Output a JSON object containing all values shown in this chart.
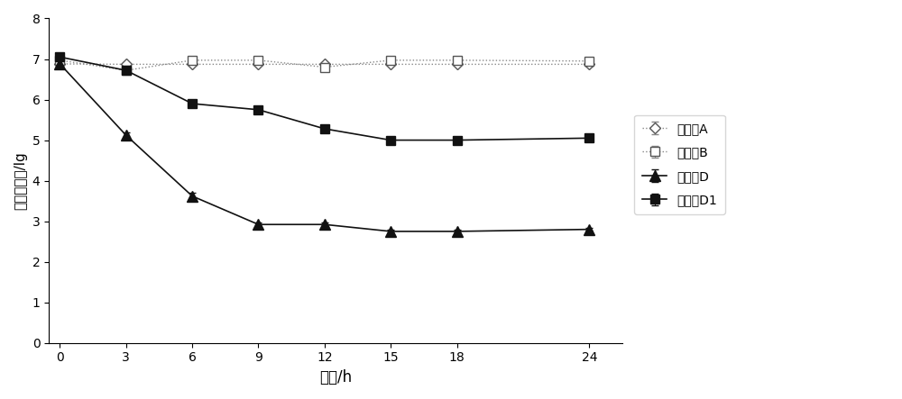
{
  "x": [
    0,
    3,
    6,
    9,
    12,
    15,
    18,
    24
  ],
  "series": {
    "实验组A": {
      "y": [
        6.88,
        6.87,
        6.87,
        6.87,
        6.87,
        6.87,
        6.87,
        6.87
      ],
      "yerr": [
        0.04,
        0.0,
        0.0,
        0.0,
        0.06,
        0.0,
        0.0,
        0.05
      ],
      "marker": "D",
      "markersize": 6,
      "markerfacecolor": "white",
      "markeredgecolor": "#555555",
      "color": "#888888",
      "linestyle": ":",
      "linewidth": 1.0
    },
    "实验组B": {
      "y": [
        6.97,
        6.72,
        6.97,
        6.97,
        6.8,
        6.97,
        6.97,
        6.95
      ],
      "yerr": [
        0.04,
        0.0,
        0.06,
        0.06,
        0.1,
        0.05,
        0.05,
        0.04
      ],
      "marker": "s",
      "markersize": 7,
      "markerfacecolor": "white",
      "markeredgecolor": "#555555",
      "color": "#888888",
      "linestyle": ":",
      "linewidth": 1.0
    },
    "实验组D": {
      "y": [
        6.88,
        5.12,
        3.62,
        2.92,
        2.92,
        2.75,
        2.75,
        2.8
      ],
      "yerr": [
        0.04,
        0.08,
        0.08,
        0.05,
        0.05,
        0.04,
        0.04,
        0.04
      ],
      "marker": "^",
      "markersize": 8,
      "markerfacecolor": "#111111",
      "markeredgecolor": "#111111",
      "color": "#111111",
      "linestyle": "-",
      "linewidth": 1.2
    },
    "实验组D1": {
      "y": [
        7.05,
        6.72,
        5.9,
        5.75,
        5.28,
        5.0,
        5.0,
        5.05
      ],
      "yerr": [
        0.04,
        0.05,
        0.05,
        0.05,
        0.05,
        0.04,
        0.04,
        0.04
      ],
      "marker": "s",
      "markersize": 7,
      "markerfacecolor": "#111111",
      "markeredgecolor": "#111111",
      "color": "#111111",
      "linestyle": "-",
      "linewidth": 1.2
    }
  },
  "xlabel": "时间/h",
  "ylabel": "细菌对数值/lg",
  "xlim": [
    -0.5,
    25.5
  ],
  "ylim": [
    0,
    8
  ],
  "xticks": [
    0,
    3,
    6,
    9,
    12,
    15,
    18,
    24
  ],
  "yticks": [
    0,
    1,
    2,
    3,
    4,
    5,
    6,
    7,
    8
  ],
  "legend_order": [
    "实验组A",
    "实验组B",
    "实验组D",
    "实验组D1"
  ],
  "figsize": [
    10.0,
    4.43
  ],
  "dpi": 100
}
